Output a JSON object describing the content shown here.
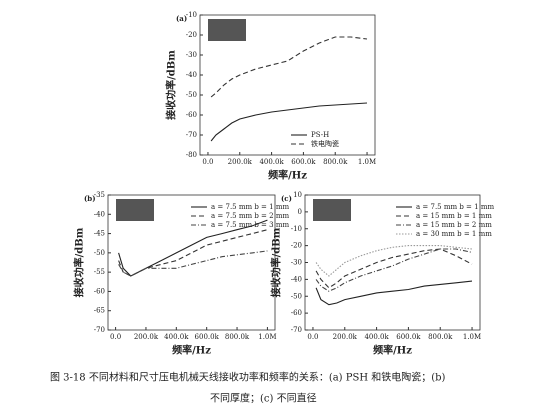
{
  "chart_data": [
    {
      "type": "line",
      "label": "(a)",
      "xlabel": "频率/Hz",
      "ylabel": "接收功率/dBm",
      "xlim": [
        -50000,
        1050000
      ],
      "ylim": [
        -80,
        -10
      ],
      "xticks": [
        {
          "value": 0,
          "label": "0.0"
        },
        {
          "value": 200000,
          "label": "200.0k"
        },
        {
          "value": 400000,
          "label": "400.0k"
        },
        {
          "value": 600000,
          "label": "600.0k"
        },
        {
          "value": 800000,
          "label": "800.0k"
        },
        {
          "value": 1000000,
          "label": "1.0M"
        }
      ],
      "yticks": [
        -80,
        -70,
        -60,
        -50,
        -40,
        -30,
        -20,
        -10
      ],
      "legend": "lower right",
      "x": [
        20000,
        50000,
        100000,
        150000,
        200000,
        300000,
        400000,
        500000,
        600000,
        700000,
        800000,
        900000,
        1000000
      ],
      "series": [
        {
          "name": "PS-H",
          "color": "#222222",
          "dash": "solid",
          "values": [
            -73,
            -70,
            -67,
            -64,
            -62,
            -60,
            -58.5,
            -57.5,
            -56.5,
            -55.5,
            -55,
            -54.5,
            -54
          ]
        },
        {
          "name": "铁电陶瓷",
          "color": "#333333",
          "dash": "dashed",
          "values": [
            -51,
            -49,
            -45,
            -42,
            -40,
            -37,
            -35,
            -33,
            -28,
            -24,
            -21,
            -21,
            -22
          ]
        }
      ]
    },
    {
      "type": "line",
      "label": "(b)",
      "xlabel": "频率/Hz",
      "ylabel": "接收功率/dBm",
      "xlim": [
        -50000,
        1050000
      ],
      "ylim": [
        -70,
        -35
      ],
      "xticks": [
        {
          "value": 0,
          "label": "0.0"
        },
        {
          "value": 200000,
          "label": "200.0k"
        },
        {
          "value": 400000,
          "label": "400.0k"
        },
        {
          "value": 600000,
          "label": "600.0k"
        },
        {
          "value": 800000,
          "label": "800.0k"
        },
        {
          "value": 1000000,
          "label": "1.0M"
        }
      ],
      "yticks": [
        -70,
        -65,
        -60,
        -55,
        -50,
        -45,
        -40,
        -35
      ],
      "legend": "upper right",
      "x": [
        20000,
        50000,
        100000,
        150000,
        200000,
        300000,
        400000,
        500000,
        600000,
        700000,
        800000,
        900000,
        1000000
      ],
      "series": [
        {
          "name": "a = 7.5 mm b = 1 mm",
          "color": "#222222",
          "dash": "solid",
          "values": [
            -50,
            -54,
            -56,
            -55,
            -54,
            -52,
            -50,
            -48,
            -46,
            -45,
            -44,
            -43,
            -41.5
          ]
        },
        {
          "name": "a = 7.5 mm b = 2 mm",
          "color": "#333333",
          "dash": "dashed",
          "values": [
            -52,
            -55,
            -56,
            -55,
            -54,
            -53,
            -52,
            -50,
            -48,
            -47,
            -46,
            -45,
            -44
          ]
        },
        {
          "name": "a = 7.5 mm b = 3 mm",
          "color": "#444444",
          "dash": "dashdot",
          "values": [
            -53,
            -55,
            -56,
            -55,
            -54,
            -54,
            -54,
            -53,
            -52,
            -51,
            -50.5,
            -50,
            -49.5
          ]
        }
      ]
    },
    {
      "type": "line",
      "label": "(c)",
      "xlabel": "频率/Hz",
      "ylabel": "接收功率/dBm",
      "xlim": [
        -50000,
        1050000
      ],
      "ylim": [
        -70,
        10
      ],
      "xticks": [
        {
          "value": 0,
          "label": "0.0"
        },
        {
          "value": 200000,
          "label": "200.0k"
        },
        {
          "value": 400000,
          "label": "400.0k"
        },
        {
          "value": 600000,
          "label": "600.0k"
        },
        {
          "value": 800000,
          "label": "800.0k"
        },
        {
          "value": 1000000,
          "label": "1.0M"
        }
      ],
      "yticks": [
        -70,
        -60,
        -50,
        -40,
        -30,
        -20,
        -10,
        0,
        10
      ],
      "legend": "upper right",
      "x": [
        20000,
        50000,
        100000,
        150000,
        200000,
        300000,
        400000,
        500000,
        600000,
        700000,
        800000,
        900000,
        1000000
      ],
      "series": [
        {
          "name": "a = 7.5 mm b = 1 mm",
          "color": "#222222",
          "dash": "solid",
          "values": [
            -45,
            -52,
            -55,
            -54,
            -52,
            -50,
            -48,
            -47,
            -46,
            -44,
            -43,
            -42,
            -41
          ]
        },
        {
          "name": "a = 15 mm b = 1 mm",
          "color": "#333333",
          "dash": "dashed",
          "values": [
            -35,
            -40,
            -45,
            -42,
            -38,
            -34,
            -30,
            -27,
            -25,
            -23,
            -22,
            -26,
            -31
          ]
        },
        {
          "name": "a = 15 mm b = 2 mm",
          "color": "#444444",
          "dash": "dashdot",
          "values": [
            -40,
            -44,
            -47,
            -45,
            -42,
            -38,
            -35,
            -32,
            -28,
            -25,
            -22,
            -22,
            -24
          ]
        },
        {
          "name": "a = 30 mm b = 1 mm",
          "color": "#999999",
          "dash": "dotted",
          "values": [
            -30,
            -34,
            -38,
            -34,
            -30,
            -26,
            -23,
            -21,
            -20,
            -20,
            -20,
            -21,
            -22
          ]
        }
      ]
    }
  ],
  "caption": [
    "图 3-18 不同材料和尺寸压电机械天线接收功率和频率的关系：(a) PSH 和铁电陶瓷；(b)",
    "不同厚度；(c) 不同直径"
  ]
}
